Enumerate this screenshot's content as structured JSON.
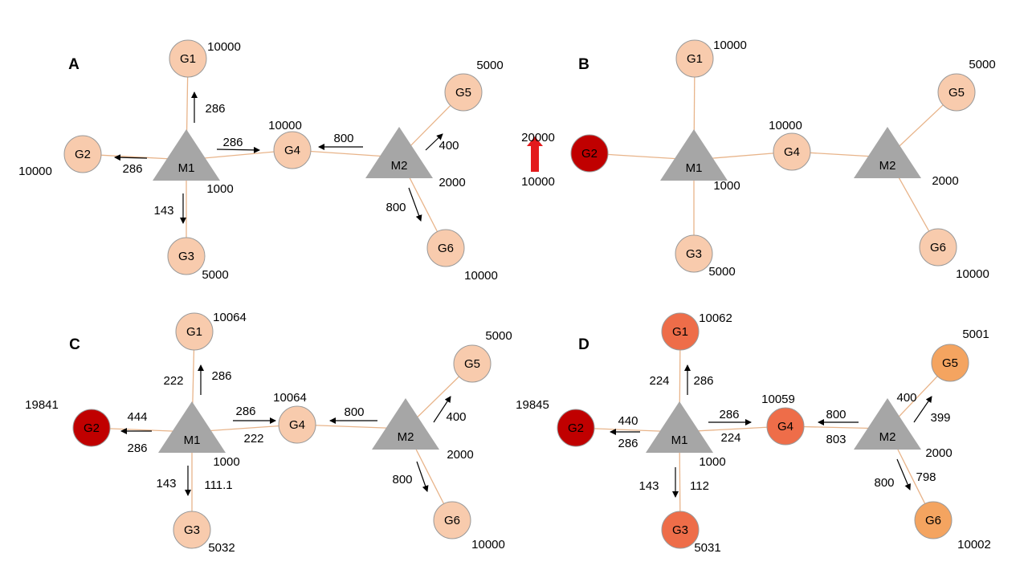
{
  "colors": {
    "edge": "#e8b48a",
    "node_stroke": "#999999",
    "mill_fill": "#a6a6a6",
    "arrow": "#000000",
    "red_arrow": "#e31a1c",
    "text_black": "#000000",
    "text_gray": "#b0b0b0",
    "text_red": "#a11d1d",
    "text_blue": "#2f5588"
  },
  "panels": [
    {
      "id": "A",
      "label": "A",
      "nodes": [
        {
          "id": "G1",
          "label": "G1",
          "fill": "#f8cbad",
          "value": "10000"
        },
        {
          "id": "G2",
          "label": "G2",
          "fill": "#f8cbad",
          "value": "10000"
        },
        {
          "id": "G3",
          "label": "G3",
          "fill": "#f8cbad",
          "value": "5000"
        },
        {
          "id": "G4",
          "label": "G4",
          "fill": "#f8cbad",
          "value": "10000"
        },
        {
          "id": "G5",
          "label": "G5",
          "fill": "#f8cbad",
          "value": "5000"
        },
        {
          "id": "G6",
          "label": "G6",
          "fill": "#f8cbad",
          "value": "10000"
        },
        {
          "id": "M1",
          "label": "M1",
          "value": "1000"
        },
        {
          "id": "M2",
          "label": "M2",
          "value": "2000"
        }
      ],
      "flows": [
        {
          "edge": "M1-G1",
          "dir": "out",
          "labels": [
            {
              "text": "286",
              "color": "black"
            }
          ]
        },
        {
          "edge": "M1-G2",
          "dir": "out",
          "labels": [
            {
              "text": "286",
              "color": "black"
            }
          ]
        },
        {
          "edge": "M1-G3",
          "dir": "out",
          "labels": [
            {
              "text": "143",
              "color": "black"
            }
          ]
        },
        {
          "edge": "M1-G4",
          "dir": "out",
          "labels": [
            {
              "text": "286",
              "color": "black"
            }
          ]
        },
        {
          "edge": "M2-G4",
          "dir": "out",
          "labels": [
            {
              "text": "800",
              "color": "black"
            }
          ]
        },
        {
          "edge": "M2-G5",
          "dir": "out",
          "labels": [
            {
              "text": "400",
              "color": "black"
            }
          ]
        },
        {
          "edge": "M2-G6",
          "dir": "out",
          "labels": [
            {
              "text": "800",
              "color": "black"
            }
          ]
        }
      ]
    },
    {
      "id": "B",
      "label": "B",
      "nodes": [
        {
          "id": "G1",
          "label": "G1",
          "fill": "#f8cbad",
          "value": "10000"
        },
        {
          "id": "G2",
          "label": "G2",
          "fill": "#c00000",
          "value": ""
        },
        {
          "id": "G3",
          "label": "G3",
          "fill": "#f8cbad",
          "value": "5000"
        },
        {
          "id": "G4",
          "label": "G4",
          "fill": "#f8cbad",
          "value": "10000"
        },
        {
          "id": "G5",
          "label": "G5",
          "fill": "#f8cbad",
          "value": "5000"
        },
        {
          "id": "G6",
          "label": "G6",
          "fill": "#f8cbad",
          "value": "10000"
        },
        {
          "id": "M1",
          "label": "M1",
          "value": "1000"
        },
        {
          "id": "M2",
          "label": "M2",
          "value": "2000"
        }
      ],
      "change": {
        "from": "10000",
        "to": "20000"
      },
      "flows": []
    },
    {
      "id": "C",
      "label": "C",
      "nodes": [
        {
          "id": "G1",
          "label": "G1",
          "fill": "#f8cbad",
          "value": "10064"
        },
        {
          "id": "G2",
          "label": "G2",
          "fill": "#c00000",
          "value": "19841"
        },
        {
          "id": "G3",
          "label": "G3",
          "fill": "#f8cbad",
          "value": "5032"
        },
        {
          "id": "G4",
          "label": "G4",
          "fill": "#f8cbad",
          "value": "10064"
        },
        {
          "id": "G5",
          "label": "G5",
          "fill": "#f8cbad",
          "value": "5000"
        },
        {
          "id": "G6",
          "label": "G6",
          "fill": "#f8cbad",
          "value": "10000"
        },
        {
          "id": "M1",
          "label": "M1",
          "value": "1000"
        },
        {
          "id": "M2",
          "label": "M2",
          "value": "2000"
        }
      ],
      "flows": [
        {
          "edge": "M1-G1",
          "dir": "out",
          "labels": [
            {
              "text": "286",
              "color": "gray"
            },
            {
              "text": "222",
              "color": "blue"
            }
          ]
        },
        {
          "edge": "M1-G2",
          "dir": "out",
          "labels": [
            {
              "text": "286",
              "color": "gray"
            },
            {
              "text": "444",
              "color": "red"
            }
          ]
        },
        {
          "edge": "M1-G3",
          "dir": "out",
          "labels": [
            {
              "text": "143",
              "color": "gray"
            },
            {
              "text": "111.1",
              "color": "blue"
            }
          ]
        },
        {
          "edge": "M1-G4",
          "dir": "out",
          "labels": [
            {
              "text": "286",
              "color": "gray"
            },
            {
              "text": "222",
              "color": "blue"
            }
          ]
        },
        {
          "edge": "M2-G4",
          "dir": "out",
          "labels": [
            {
              "text": "800",
              "color": "black"
            }
          ]
        },
        {
          "edge": "M2-G5",
          "dir": "out",
          "labels": [
            {
              "text": "400",
              "color": "black"
            }
          ]
        },
        {
          "edge": "M2-G6",
          "dir": "out",
          "labels": [
            {
              "text": "800",
              "color": "black"
            }
          ]
        }
      ]
    },
    {
      "id": "D",
      "label": "D",
      "nodes": [
        {
          "id": "G1",
          "label": "G1",
          "fill": "#ee6d49",
          "value": "10062"
        },
        {
          "id": "G2",
          "label": "G2",
          "fill": "#c00000",
          "value": "19845"
        },
        {
          "id": "G3",
          "label": "G3",
          "fill": "#ee6d49",
          "value": "5031"
        },
        {
          "id": "G4",
          "label": "G4",
          "fill": "#ee6d49",
          "value": "10059"
        },
        {
          "id": "G5",
          "label": "G5",
          "fill": "#f4a460",
          "value": "5001"
        },
        {
          "id": "G6",
          "label": "G6",
          "fill": "#f4a460",
          "value": "10002"
        },
        {
          "id": "M1",
          "label": "M1",
          "value": "1000"
        },
        {
          "id": "M2",
          "label": "M2",
          "value": "2000"
        }
      ],
      "flows": [
        {
          "edge": "M1-G1",
          "dir": "out",
          "labels": [
            {
              "text": "286",
              "color": "gray"
            },
            {
              "text": "224",
              "color": "red"
            }
          ]
        },
        {
          "edge": "M1-G2",
          "dir": "out",
          "labels": [
            {
              "text": "286",
              "color": "gray"
            },
            {
              "text": "440",
              "color": "blue"
            }
          ]
        },
        {
          "edge": "M1-G3",
          "dir": "out",
          "labels": [
            {
              "text": "143",
              "color": "gray"
            },
            {
              "text": "112",
              "color": "red"
            }
          ]
        },
        {
          "edge": "M1-G4",
          "dir": "out",
          "labels": [
            {
              "text": "286",
              "color": "gray"
            },
            {
              "text": "224",
              "color": "red"
            }
          ]
        },
        {
          "edge": "M2-G4",
          "dir": "out",
          "labels": [
            {
              "text": "800",
              "color": "gray"
            },
            {
              "text": "803",
              "color": "red"
            }
          ]
        },
        {
          "edge": "M2-G5",
          "dir": "out",
          "labels": [
            {
              "text": "400",
              "color": "gray"
            },
            {
              "text": "399",
              "color": "blue"
            }
          ]
        },
        {
          "edge": "M2-G6",
          "dir": "out",
          "labels": [
            {
              "text": "800",
              "color": "gray"
            },
            {
              "text": "798",
              "color": "blue"
            }
          ]
        }
      ]
    }
  ]
}
